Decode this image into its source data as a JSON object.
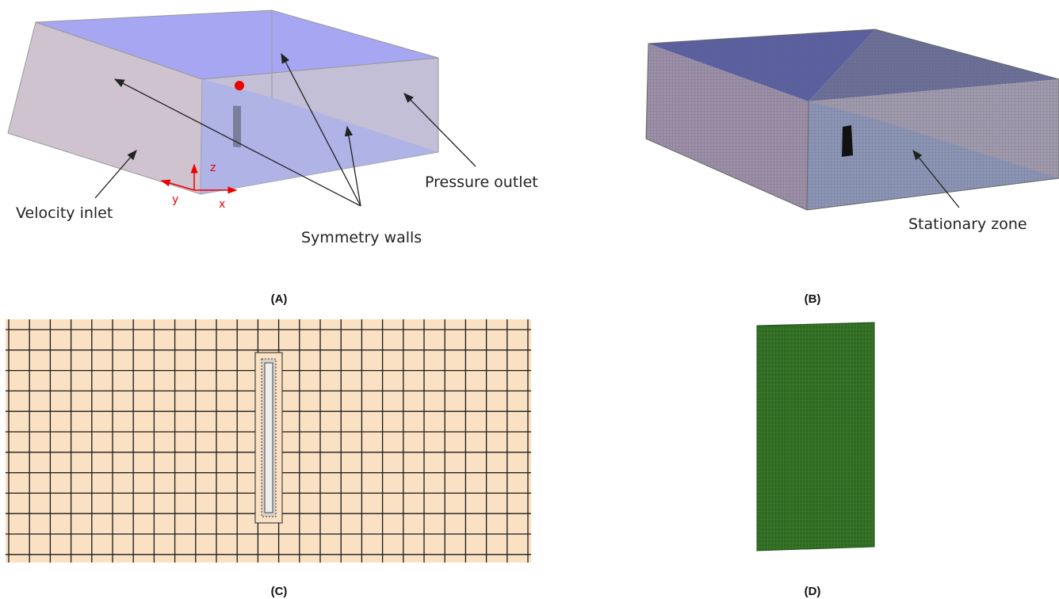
{
  "panels": {
    "a": {
      "caption": "(A)",
      "labels": {
        "velocity_inlet": "Velocity inlet",
        "symmetry_walls": "Symmetry walls",
        "pressure_outlet": "Pressure outlet"
      },
      "axes": {
        "x": "x",
        "y": "y",
        "z": "z"
      }
    },
    "b": {
      "caption": "(B)",
      "labels": {
        "stationary_zone": "Stationary zone"
      }
    },
    "c": {
      "caption": "(C)"
    },
    "d": {
      "caption": "(D)"
    }
  }
}
